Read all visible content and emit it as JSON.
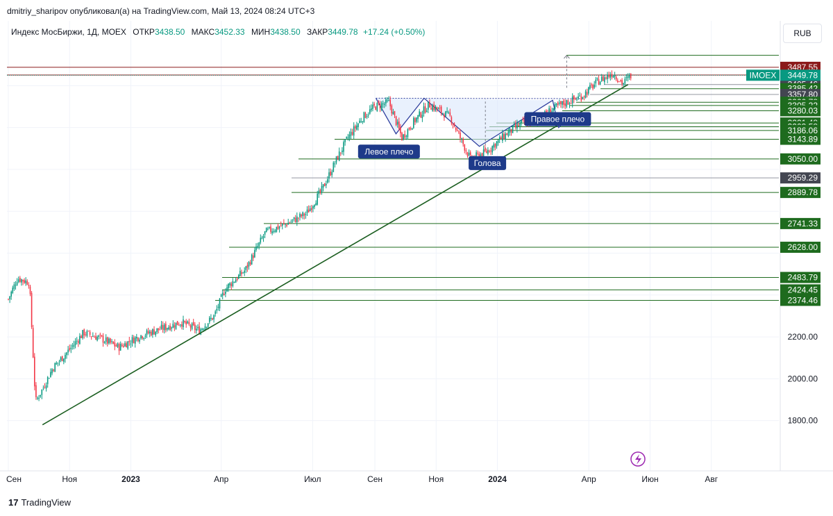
{
  "header": {
    "publisher_line": "dmitriy_sharipov опубликовал(а) на TradingView.com, Май 13, 2024 08:24 UTC+3"
  },
  "legend": {
    "title": "Индекс МосБиржи, 1Д, MOEX",
    "open_label": "ОТКР",
    "open_value": "3438.50",
    "high_label": "МАКС",
    "high_value": "3452.33",
    "low_label": "МИН",
    "low_value": "3438.50",
    "close_label": "ЗАКР",
    "close_value": "3449.78",
    "change": "+17.24 (+0.50%)"
  },
  "currency_button": "RUB",
  "branding": {
    "logo_mark": "17",
    "logo_text": "TradingView"
  },
  "colors": {
    "up": "#089981",
    "down": "#f23645",
    "trend": "#1b5e20",
    "level_green": "#1e6b1e",
    "level_red": "#8b1a1a",
    "pattern_line": "#2e3f9e",
    "pattern_fill": "#dbe7fb",
    "label_bg": "#1e3a8a",
    "current_price": "#089981"
  },
  "chart_data": {
    "type": "candlestick",
    "symbol": "IMOEX",
    "last_price": "3449.78",
    "x_axis_labels": [
      "Сен",
      "Ноя",
      "2023",
      "Апр",
      "Июл",
      "Сен",
      "Ноя",
      "2024",
      "Апр",
      "Июн",
      "Авг"
    ],
    "y_axis_ticks": [
      "2200.00",
      "2000.00",
      "1800.00"
    ],
    "ylim": [
      1560,
      3620
    ],
    "grid": true,
    "price_levels": [
      {
        "value": "3487.55",
        "color": "red"
      },
      {
        "value": "3450.81",
        "color": "red"
      },
      {
        "value": "3405.46",
        "color": "gray"
      },
      {
        "value": "3385.42",
        "color": "green"
      },
      {
        "value": "3357.80",
        "color": "gray"
      },
      {
        "value": "3320.78",
        "color": "green"
      },
      {
        "value": "3305.22",
        "color": "green"
      },
      {
        "value": "3280.03",
        "color": "green"
      },
      {
        "value": "3221.48",
        "color": "green"
      },
      {
        "value": "3203.58",
        "color": "green"
      },
      {
        "value": "3186.06",
        "color": "green"
      },
      {
        "value": "3143.89",
        "color": "green"
      },
      {
        "value": "3050.00",
        "color": "green"
      },
      {
        "value": "2959.29",
        "color": "gray"
      },
      {
        "value": "2889.78",
        "color": "green"
      },
      {
        "value": "2741.33",
        "color": "green"
      },
      {
        "value": "2628.00",
        "color": "green"
      },
      {
        "value": "2483.79",
        "color": "green"
      },
      {
        "value": "2424.45",
        "color": "green"
      },
      {
        "value": "2374.46",
        "color": "green"
      }
    ],
    "annotations": [
      "Левое плечо",
      "Голова",
      "Правое плечо"
    ],
    "price_path": [
      {
        "date": "2022-09-01",
        "close": 2380
      },
      {
        "date": "2022-09-10",
        "close": 2480
      },
      {
        "date": "2022-09-22",
        "close": 2460
      },
      {
        "date": "2022-09-28",
        "close": 1890
      },
      {
        "date": "2022-10-05",
        "close": 1950
      },
      {
        "date": "2022-10-15",
        "close": 2050
      },
      {
        "date": "2022-11-01",
        "close": 2140
      },
      {
        "date": "2022-11-15",
        "close": 2220
      },
      {
        "date": "2022-12-01",
        "close": 2195
      },
      {
        "date": "2022-12-20",
        "close": 2150
      },
      {
        "date": "2023-01-10",
        "close": 2205
      },
      {
        "date": "2023-02-01",
        "close": 2240
      },
      {
        "date": "2023-02-20",
        "close": 2270
      },
      {
        "date": "2023-03-10",
        "close": 2230
      },
      {
        "date": "2023-03-25",
        "close": 2300
      },
      {
        "date": "2023-04-05",
        "close": 2430
      },
      {
        "date": "2023-04-25",
        "close": 2520
      },
      {
        "date": "2023-05-15",
        "close": 2700
      },
      {
        "date": "2023-06-05",
        "close": 2740
      },
      {
        "date": "2023-06-25",
        "close": 2790
      },
      {
        "date": "2023-07-10",
        "close": 2900
      },
      {
        "date": "2023-07-25",
        "close": 3050
      },
      {
        "date": "2023-08-05",
        "close": 3150
      },
      {
        "date": "2023-08-20",
        "close": 3250
      },
      {
        "date": "2023-09-01",
        "close": 3300
      },
      {
        "date": "2023-09-15",
        "close": 3320
      },
      {
        "date": "2023-09-28",
        "close": 3150
      },
      {
        "date": "2023-10-10",
        "close": 3230
      },
      {
        "date": "2023-10-25",
        "close": 3310
      },
      {
        "date": "2023-11-15",
        "close": 3250
      },
      {
        "date": "2023-12-05",
        "close": 3050
      },
      {
        "date": "2023-12-20",
        "close": 3080
      },
      {
        "date": "2024-01-10",
        "close": 3170
      },
      {
        "date": "2024-01-25",
        "close": 3220
      },
      {
        "date": "2024-02-10",
        "close": 3230
      },
      {
        "date": "2024-02-22",
        "close": 3280
      },
      {
        "date": "2024-03-05",
        "close": 3310
      },
      {
        "date": "2024-03-25",
        "close": 3350
      },
      {
        "date": "2024-04-10",
        "close": 3420
      },
      {
        "date": "2024-04-25",
        "close": 3460
      },
      {
        "date": "2024-05-05",
        "close": 3410
      },
      {
        "date": "2024-05-13",
        "close": 3449.78
      }
    ]
  }
}
